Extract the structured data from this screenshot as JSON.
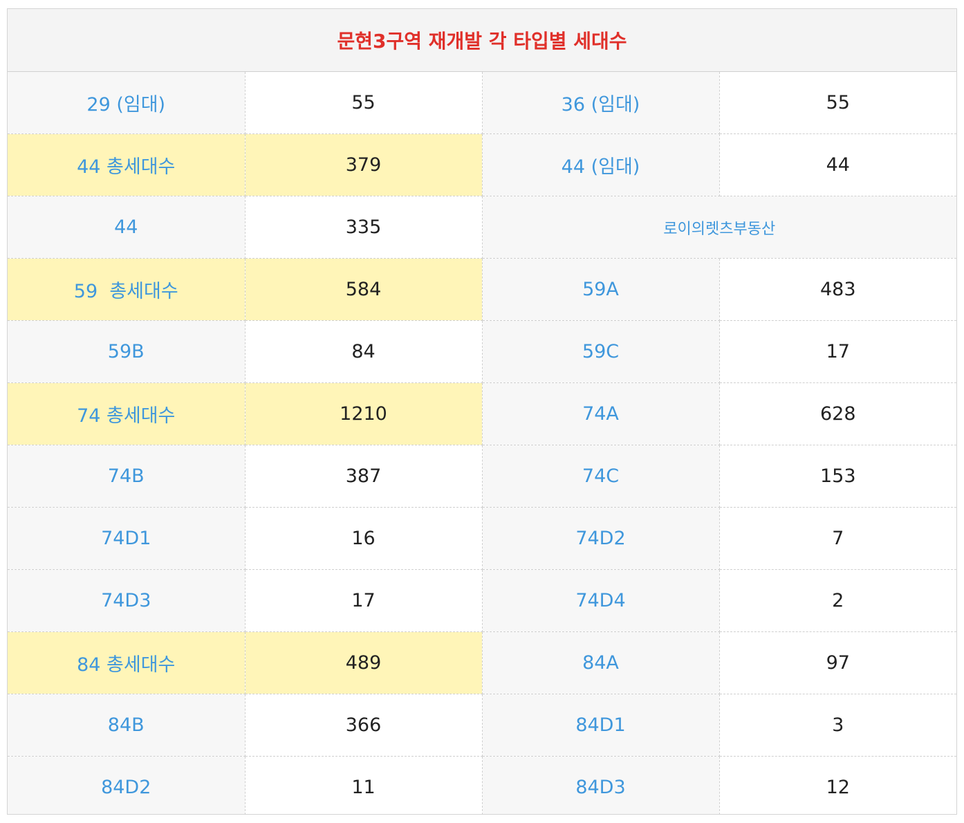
{
  "title": "문현3구역 재개발 각 타입별 세대수",
  "watermark": "로이의렛츠부동산",
  "colors": {
    "title": "#e0302a",
    "label": "#3f97dc",
    "value": "#222222",
    "highlight": "#fff5b8",
    "label_bg": "#f7f7f7"
  },
  "rows": [
    [
      {
        "label": "29 (임대)",
        "value": "55"
      },
      {
        "label": "36 (임대)",
        "value": "55"
      }
    ],
    [
      {
        "label": "44 총세대수",
        "value": "379"
      },
      {
        "label": "44 (임대)",
        "value": "44"
      }
    ],
    [
      {
        "label": "44",
        "value": "335"
      }
    ],
    [
      {
        "label": "59  총세대수",
        "value": "584"
      },
      {
        "label": "59A",
        "value": "483"
      }
    ],
    [
      {
        "label": "59B",
        "value": "84"
      },
      {
        "label": "59C",
        "value": "17"
      }
    ],
    [
      {
        "label": "74 총세대수",
        "value": "1210"
      },
      {
        "label": "74A",
        "value": "628"
      }
    ],
    [
      {
        "label": "74B",
        "value": "387"
      },
      {
        "label": "74C",
        "value": "153"
      }
    ],
    [
      {
        "label": "74D1",
        "value": "16"
      },
      {
        "label": "74D2",
        "value": "7"
      }
    ],
    [
      {
        "label": "74D3",
        "value": "17"
      },
      {
        "label": "74D4",
        "value": "2"
      }
    ],
    [
      {
        "label": "84 총세대수",
        "value": "489"
      },
      {
        "label": "84A",
        "value": "97"
      }
    ],
    [
      {
        "label": "84B",
        "value": "366"
      },
      {
        "label": "84D1",
        "value": "3"
      }
    ],
    [
      {
        "label": "84D2",
        "value": "11"
      },
      {
        "label": "84D3",
        "value": "12"
      }
    ]
  ]
}
